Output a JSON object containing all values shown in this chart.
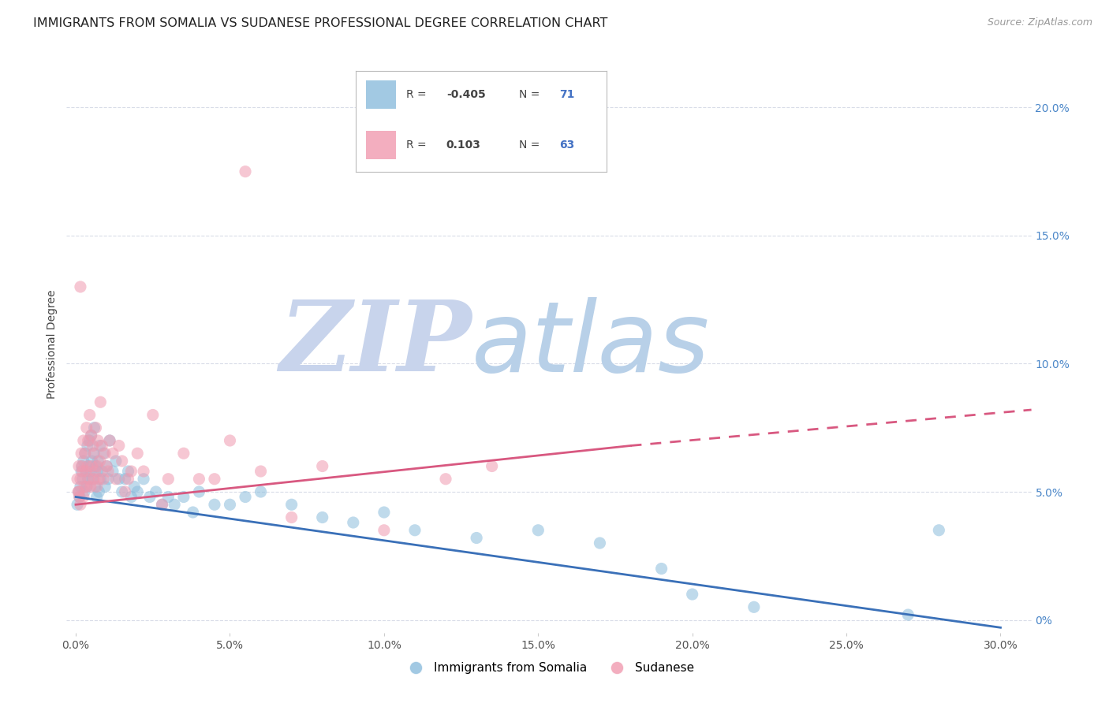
{
  "title": "IMMIGRANTS FROM SOMALIA VS SUDANESE PROFESSIONAL DEGREE CORRELATION CHART",
  "source": "Source: ZipAtlas.com",
  "ylabel": "Professional Degree",
  "x_tick_labels": [
    "0.0%",
    "5.0%",
    "10.0%",
    "15.0%",
    "20.0%",
    "25.0%",
    "30.0%"
  ],
  "x_tick_values": [
    0.0,
    5.0,
    10.0,
    15.0,
    20.0,
    25.0,
    30.0
  ],
  "y_tick_labels": [
    "20.0%",
    "15.0%",
    "10.0%",
    "5.0%",
    "0%"
  ],
  "y_tick_values": [
    20.0,
    15.0,
    10.0,
    5.0,
    0.0
  ],
  "xlim": [
    -0.3,
    31.0
  ],
  "ylim": [
    -0.5,
    22.0
  ],
  "legend_entries": [
    {
      "label": "Immigrants from Somalia",
      "R": "-0.405",
      "N": "71",
      "color": "#a8c8e8"
    },
    {
      "label": "Sudanese",
      "R": "0.103",
      "N": "63",
      "color": "#f4a8bc"
    }
  ],
  "somalia_scatter_x": [
    0.05,
    0.1,
    0.12,
    0.15,
    0.18,
    0.2,
    0.22,
    0.25,
    0.28,
    0.3,
    0.33,
    0.35,
    0.38,
    0.4,
    0.42,
    0.45,
    0.48,
    0.5,
    0.52,
    0.55,
    0.58,
    0.6,
    0.63,
    0.65,
    0.68,
    0.7,
    0.72,
    0.75,
    0.78,
    0.8,
    0.85,
    0.9,
    0.95,
    1.0,
    1.05,
    1.1,
    1.2,
    1.3,
    1.4,
    1.5,
    1.6,
    1.7,
    1.8,
    1.9,
    2.0,
    2.2,
    2.4,
    2.6,
    2.8,
    3.0,
    3.2,
    3.5,
    3.8,
    4.0,
    4.5,
    5.0,
    5.5,
    6.0,
    7.0,
    8.0,
    9.0,
    10.0,
    11.0,
    13.0,
    15.0,
    17.0,
    19.0,
    20.0,
    22.0,
    27.0,
    28.0
  ],
  "somalia_scatter_y": [
    4.5,
    5.0,
    4.8,
    5.2,
    5.8,
    6.0,
    5.5,
    6.2,
    5.0,
    6.5,
    5.8,
    5.2,
    6.8,
    5.5,
    6.0,
    7.0,
    5.8,
    7.2,
    6.2,
    5.5,
    6.5,
    7.5,
    5.2,
    6.0,
    4.8,
    5.8,
    6.2,
    5.0,
    6.8,
    5.5,
    5.8,
    6.5,
    5.2,
    6.0,
    5.5,
    7.0,
    5.8,
    6.2,
    5.5,
    5.0,
    5.5,
    5.8,
    4.8,
    5.2,
    5.0,
    5.5,
    4.8,
    5.0,
    4.5,
    4.8,
    4.5,
    4.8,
    4.2,
    5.0,
    4.5,
    4.5,
    4.8,
    5.0,
    4.5,
    4.0,
    3.8,
    4.2,
    3.5,
    3.2,
    3.5,
    3.0,
    2.0,
    1.0,
    0.5,
    0.2,
    3.5
  ],
  "sudanese_scatter_x": [
    0.05,
    0.08,
    0.1,
    0.12,
    0.15,
    0.18,
    0.2,
    0.22,
    0.25,
    0.28,
    0.3,
    0.33,
    0.35,
    0.38,
    0.4,
    0.42,
    0.45,
    0.48,
    0.5,
    0.52,
    0.55,
    0.58,
    0.6,
    0.63,
    0.65,
    0.68,
    0.7,
    0.72,
    0.75,
    0.78,
    0.8,
    0.85,
    0.9,
    0.95,
    1.0,
    1.05,
    1.1,
    1.2,
    1.3,
    1.4,
    1.5,
    1.6,
    1.7,
    1.8,
    2.0,
    2.2,
    2.5,
    3.0,
    3.5,
    4.0,
    4.5,
    5.0,
    6.0,
    7.0,
    8.0,
    10.0,
    12.0,
    13.5,
    0.1,
    0.15,
    0.25,
    0.35,
    2.8
  ],
  "sudanese_scatter_y": [
    5.5,
    5.0,
    6.0,
    4.8,
    5.5,
    6.5,
    6.0,
    5.8,
    7.0,
    5.2,
    6.5,
    5.8,
    7.5,
    6.0,
    7.0,
    5.5,
    8.0,
    5.2,
    7.2,
    6.0,
    6.8,
    5.5,
    6.5,
    5.8,
    7.5,
    5.2,
    6.0,
    7.0,
    5.5,
    6.2,
    8.5,
    6.8,
    5.5,
    6.5,
    6.0,
    5.8,
    7.0,
    6.5,
    5.5,
    6.8,
    6.2,
    5.0,
    5.5,
    5.8,
    6.5,
    5.8,
    8.0,
    5.5,
    6.5,
    5.5,
    5.5,
    7.0,
    5.8,
    4.0,
    6.0,
    3.5,
    5.5,
    6.0,
    5.0,
    4.5,
    4.8,
    5.2,
    4.5
  ],
  "sudanese_outlier1_x": 5.5,
  "sudanese_outlier1_y": 17.5,
  "sudanese_outlier2_x": 0.15,
  "sudanese_outlier2_y": 13.0,
  "somalia_line_x0": 0.0,
  "somalia_line_y0": 4.8,
  "somalia_line_x1": 30.0,
  "somalia_line_y1": -0.3,
  "sudanese_solid_x0": 0.0,
  "sudanese_solid_y0": 4.5,
  "sudanese_solid_x1": 18.0,
  "sudanese_solid_y1": 6.8,
  "sudanese_dashed_x0": 18.0,
  "sudanese_dashed_y0": 6.8,
  "sudanese_dashed_x1": 31.0,
  "sudanese_dashed_y1": 8.2,
  "somalia_color": "#8bbcdc",
  "sudanese_color": "#f09ab0",
  "somalia_line_color": "#3a70b8",
  "sudanese_line_color": "#d85880",
  "background_color": "#ffffff",
  "grid_color": "#d8dce8",
  "watermark_zip_color": "#c8d4ec",
  "watermark_atlas_color": "#b8d0e8",
  "right_axis_color": "#4a86c8",
  "title_fontsize": 11.5,
  "source_fontsize": 9,
  "axis_label_fontsize": 10,
  "tick_fontsize": 10,
  "legend_R_color": "#444444",
  "legend_N_color": "#4472c4"
}
